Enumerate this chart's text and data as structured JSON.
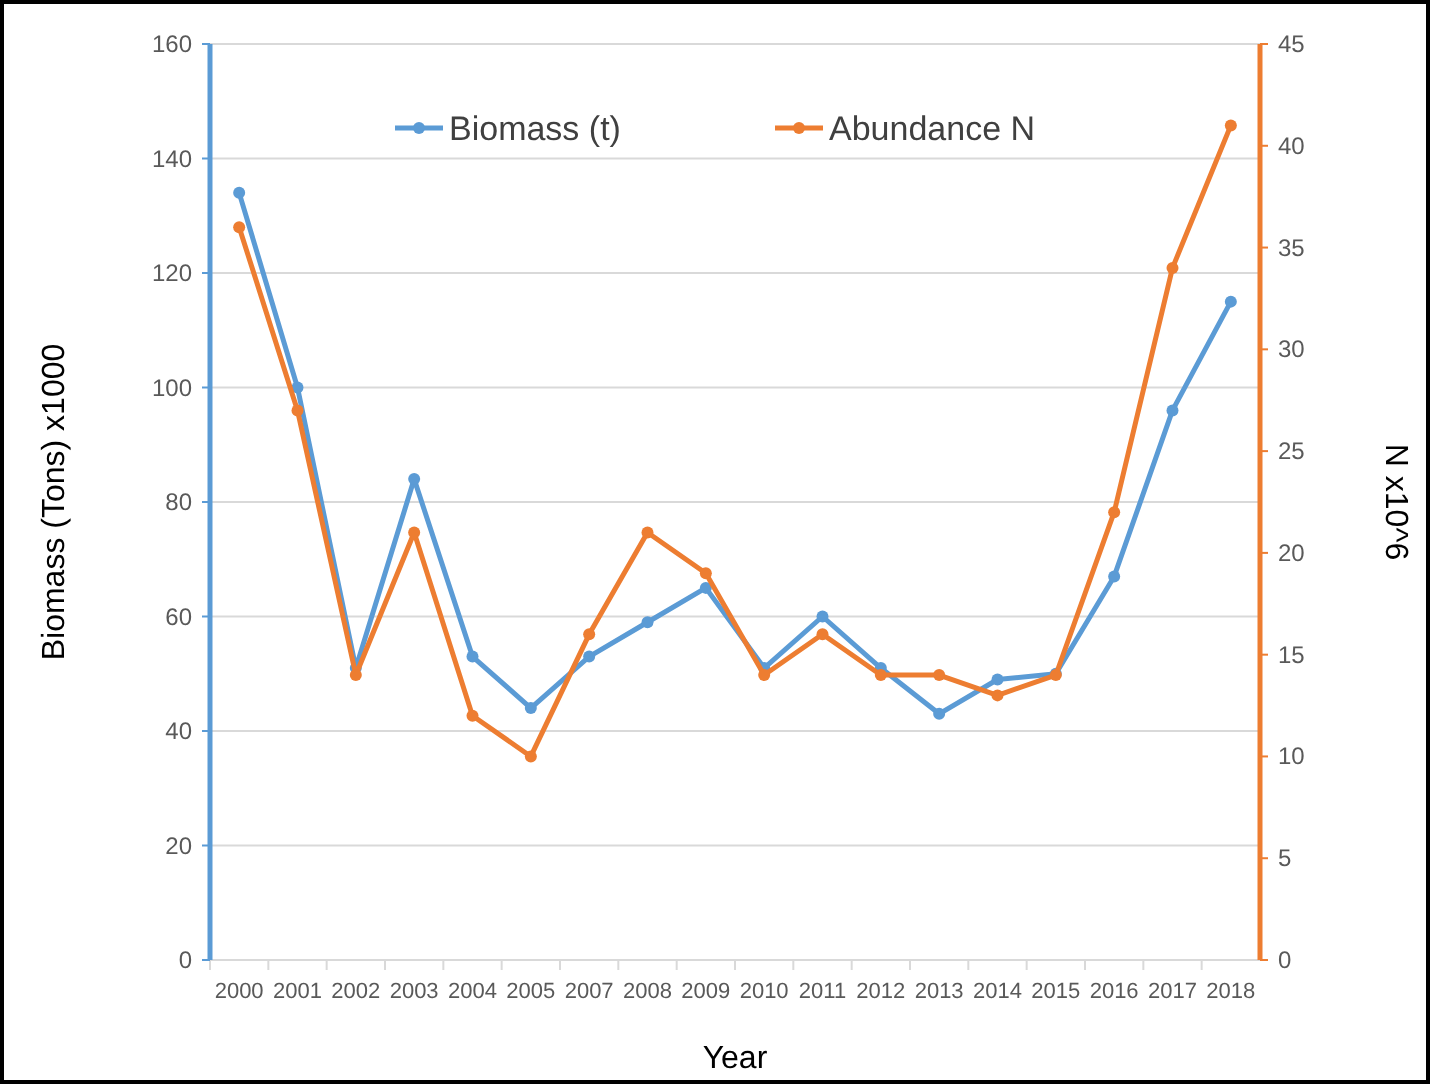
{
  "chart_data": {
    "type": "line",
    "xlabel": "Year",
    "ylabel": "Biomass (Tons) x1000",
    "y2label": "N x10^6",
    "categories": [
      "2000",
      "2001",
      "2002",
      "2003",
      "2004",
      "2005",
      "2007",
      "2008",
      "2009",
      "2010",
      "2011",
      "2012",
      "2013",
      "2014",
      "2015",
      "2016",
      "2017",
      "2018"
    ],
    "series": [
      {
        "name": "Biomass (t)",
        "color": "#5b9bd5",
        "values": [
          134,
          100,
          51,
          84,
          53,
          44,
          53,
          59,
          65,
          51,
          60,
          51,
          43,
          49,
          50,
          67,
          96,
          115
        ]
      },
      {
        "name": "Abundance N",
        "color": "#ed7d31",
        "axis": "y2",
        "values": [
          36,
          27,
          14,
          21,
          12,
          10,
          16,
          21,
          19,
          14,
          16,
          14,
          14,
          13,
          14,
          22,
          34,
          41
        ]
      }
    ],
    "ylim": [
      0,
      160
    ],
    "yticks": [
      0,
      20,
      40,
      60,
      80,
      100,
      120,
      140,
      160
    ],
    "y2lim": [
      0,
      45
    ],
    "y2ticks": [
      0,
      5,
      10,
      15,
      20,
      25,
      30,
      35,
      40,
      45
    ],
    "grid": "y",
    "legend": "top",
    "marker": "circle",
    "line_style": "solid"
  }
}
